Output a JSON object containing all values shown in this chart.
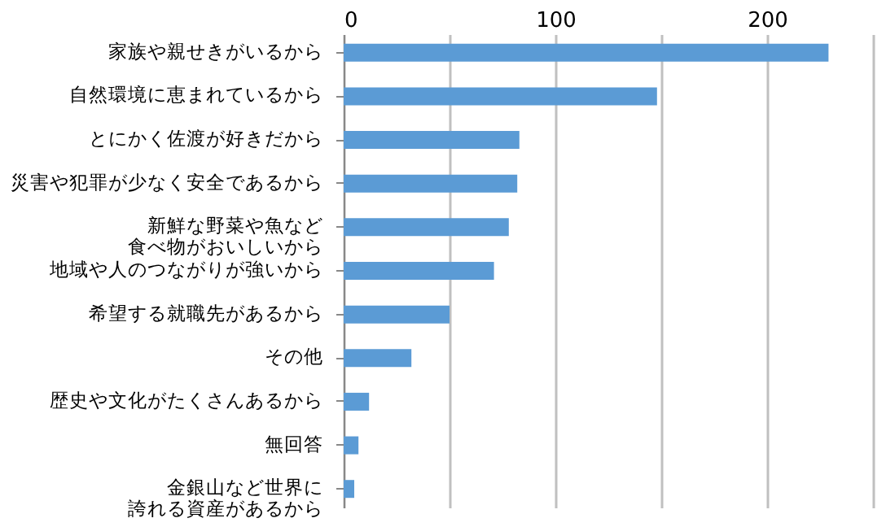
{
  "chart_data": {
    "type": "bar",
    "orientation": "horizontal",
    "categories": [
      "家族や親せきがいるから",
      "自然環境に恵まれているから",
      "とにかく佐渡が好きだから",
      "災害や犯罪が少なく安全であるから",
      "新鮮な野菜や魚など食べ物がおいしいから",
      "地域や人のつながりが強いから",
      "希望する就職先があるから",
      "その他",
      "歴史や文化がたくさんあるから",
      "無回答",
      "金銀山など世界に誇れる資産があるから"
    ],
    "values": [
      229,
      148,
      83,
      82,
      78,
      71,
      50,
      32,
      12,
      7,
      5
    ],
    "color": "#5b9bd5",
    "xlim": [
      0,
      250
    ],
    "xticks": [
      0,
      {
        "value": 50,
        "label": null
      },
      100,
      {
        "value": 150,
        "label": null
      },
      200,
      {
        "value": 250,
        "label": null
      }
    ],
    "grid": "x"
  }
}
